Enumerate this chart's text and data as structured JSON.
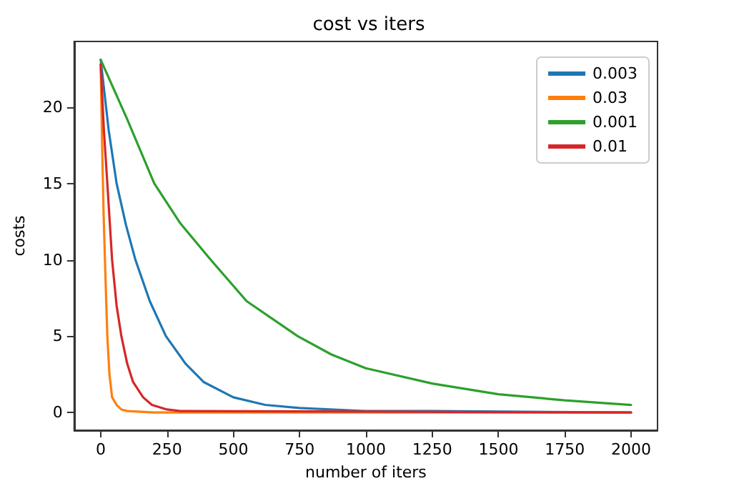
{
  "chart_data": {
    "type": "line",
    "title": "cost vs iters",
    "xlabel": "number of iters",
    "ylabel": "costs",
    "xlim": [
      -100,
      2100
    ],
    "xticks": [
      0,
      250,
      500,
      750,
      1000,
      1250,
      1500,
      1750,
      2000
    ],
    "ylim": [
      -1.16,
      24.3
    ],
    "yticks": [
      0,
      5,
      10,
      15,
      20
    ],
    "grid": false,
    "legend": "top right",
    "marker": "none",
    "line_style": "solid",
    "series": [
      {
        "name": "0.003",
        "color": "#1f77b4",
        "x": [
          0,
          30,
          60,
          95,
          131,
          185,
          246,
          320,
          388,
          500,
          620,
          750,
          1000,
          1250,
          1500,
          2000
        ],
        "values": [
          23.1,
          18.5,
          15,
          12.3,
          10,
          7.3,
          5,
          3.2,
          2,
          1,
          0.5,
          0.3,
          0.1,
          0.1,
          null,
          0
        ]
      },
      {
        "name": "0.03",
        "color": "#ff7f0e",
        "x": [
          0,
          6,
          11,
          16,
          25,
          33,
          43,
          60,
          78,
          100,
          200,
          2000
        ],
        "values": [
          22.8,
          17,
          13,
          10,
          5,
          2.5,
          1,
          0.5,
          0.2,
          0.1,
          0,
          0
        ]
      },
      {
        "name": "0.001",
        "color": "#2ca02c",
        "x": [
          0,
          100,
          202,
          300,
          415,
          550,
          743,
          870,
          1000,
          1250,
          1500,
          1750,
          2000
        ],
        "values": [
          23.1,
          19.2,
          15,
          12.4,
          10,
          7.3,
          5,
          3.8,
          2.9,
          1.9,
          1.2,
          0.8,
          0.5
        ]
      },
      {
        "name": "0.01",
        "color": "#d62728",
        "x": [
          0,
          12,
          25,
          43,
          60,
          78,
          100,
          122,
          160,
          193,
          250,
          300,
          2000
        ],
        "values": [
          22.8,
          18.5,
          15,
          10,
          7,
          5,
          3.2,
          2,
          1,
          0.5,
          0.2,
          0.1,
          0
        ]
      }
    ]
  }
}
